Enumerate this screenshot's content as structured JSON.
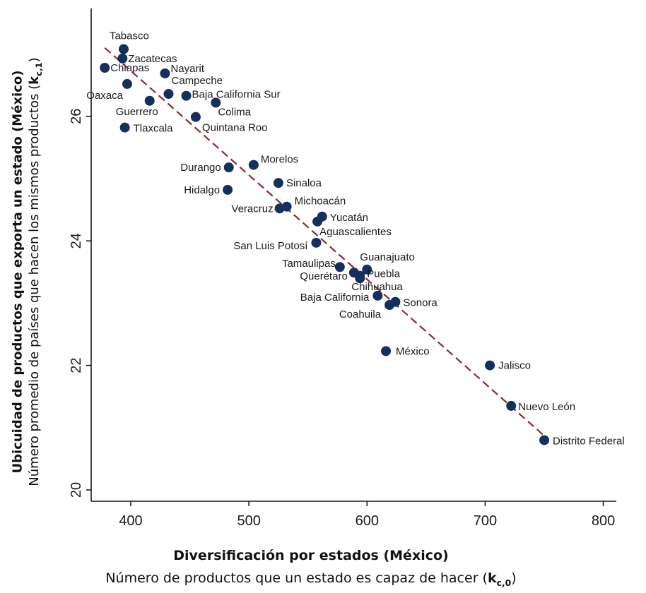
{
  "chart_data": {
    "type": "scatter",
    "xlabel": "Diversificación por estados  (México)",
    "xlabel_sub": "Número de productos que un estado es capaz de hacer",
    "xlabel_sub_symbol": "k",
    "xlabel_sub_index": "c,0",
    "ylabel": "Ubicuidad de productos que exporta un estado (México)",
    "ylabel_sub": "Número promedio de países que hacen los mismos productos",
    "ylabel_sub_symbol": "k",
    "ylabel_sub_index": "c,1",
    "xlim": [
      370,
      805
    ],
    "ylim": [
      19.8,
      27.8
    ],
    "xticks": [
      400,
      500,
      600,
      700,
      800
    ],
    "yticks": [
      20,
      22,
      24,
      26
    ],
    "grid": false,
    "colors": {
      "points": "#14305e",
      "fit": "#8b2a30"
    },
    "fit_line": {
      "x": [
        378,
        750
      ],
      "y": [
        27.1,
        20.87
      ]
    },
    "points": [
      {
        "label": "Tabasco",
        "x": 394,
        "y": 27.08
      },
      {
        "label": "Zacatecas",
        "x": 393,
        "y": 26.93
      },
      {
        "label": "Chiapas",
        "x": 378,
        "y": 26.78
      },
      {
        "label": "Nayarit",
        "x": 429,
        "y": 26.69
      },
      {
        "label": "Oaxaca",
        "x": 397,
        "y": 26.52
      },
      {
        "label": "Campeche",
        "x": 432,
        "y": 26.36
      },
      {
        "label": "Baja California Sur",
        "x": 447,
        "y": 26.33
      },
      {
        "label": "Guerrero",
        "x": 416,
        "y": 26.25
      },
      {
        "label": "Colima",
        "x": 472,
        "y": 26.22
      },
      {
        "label": "Quintana Roo",
        "x": 455,
        "y": 25.99
      },
      {
        "label": "Tlaxcala",
        "x": 395,
        "y": 25.82
      },
      {
        "label": "Morelos",
        "x": 504,
        "y": 25.22
      },
      {
        "label": "Durango",
        "x": 483,
        "y": 25.18
      },
      {
        "label": "Sinaloa",
        "x": 525,
        "y": 24.93
      },
      {
        "label": "Hidalgo",
        "x": 482,
        "y": 24.82
      },
      {
        "label": "Michoacán",
        "x": 532,
        "y": 24.55
      },
      {
        "label": "Veracruz",
        "x": 526,
        "y": 24.52
      },
      {
        "label": "Yucatán",
        "x": 562,
        "y": 24.39
      },
      {
        "label": "Aguascalientes",
        "x": 558,
        "y": 24.31
      },
      {
        "label": "San Luis Potosí",
        "x": 557,
        "y": 23.97
      },
      {
        "label": "Tamaulipas",
        "x": 577,
        "y": 23.58
      },
      {
        "label": "Guanajuato",
        "x": 600,
        "y": 23.54
      },
      {
        "label": "Querétaro",
        "x": 589,
        "y": 23.49
      },
      {
        "label": "Puebla",
        "x": 594,
        "y": 23.44
      },
      {
        "label": "Chihuahua",
        "x": 594,
        "y": 23.4
      },
      {
        "label": "Baja California",
        "x": 609,
        "y": 23.12
      },
      {
        "label": "Sonora",
        "x": 624,
        "y": 23.02
      },
      {
        "label": "Coahuila",
        "x": 619,
        "y": 22.97
      },
      {
        "label": "México",
        "x": 616,
        "y": 22.23
      },
      {
        "label": "Jalisco",
        "x": 704,
        "y": 22.0
      },
      {
        "label": "Nuevo León",
        "x": 722,
        "y": 21.35
      },
      {
        "label": "Distrito Federal",
        "x": 750,
        "y": 20.8
      }
    ]
  }
}
